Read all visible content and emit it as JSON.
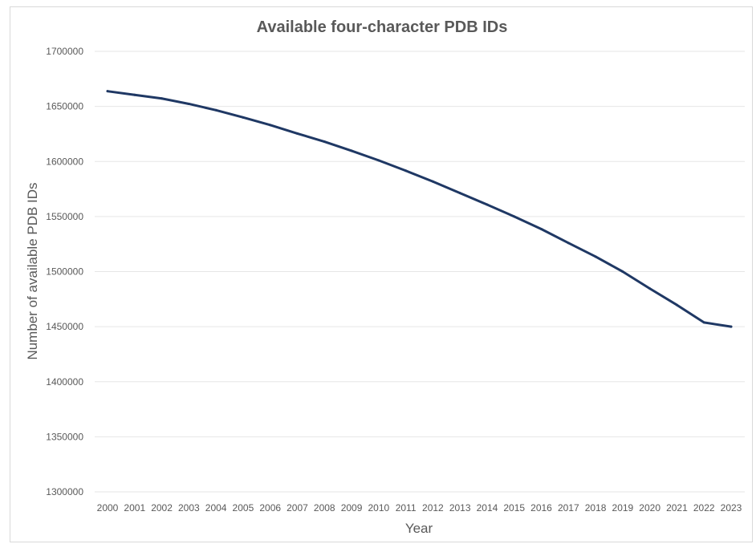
{
  "chart_data": {
    "type": "line",
    "title": "Available four-character PDB IDs",
    "xlabel": "Year",
    "ylabel": "Number of available PDB IDs",
    "x": [
      "2000",
      "2001",
      "2002",
      "2003",
      "2004",
      "2005",
      "2006",
      "2007",
      "2008",
      "2009",
      "2010",
      "2011",
      "2012",
      "2013",
      "2014",
      "2015",
      "2016",
      "2017",
      "2018",
      "2019",
      "2020",
      "2021",
      "2022",
      "2023"
    ],
    "series": [
      {
        "values": [
          1663800,
          1660500,
          1657200,
          1652300,
          1646600,
          1640000,
          1633100,
          1625400,
          1618000,
          1609700,
          1601000,
          1591600,
          1581800,
          1571300,
          1560800,
          1550000,
          1538600,
          1526000,
          1513600,
          1500000,
          1484600,
          1469700,
          1453800,
          1450000
        ],
        "color": "#1f3864"
      }
    ],
    "ylim": [
      1300000,
      1700000
    ],
    "yticks": [
      1300000,
      1350000,
      1400000,
      1450000,
      1500000,
      1550000,
      1600000,
      1650000,
      1700000
    ],
    "grid": true,
    "legend": "none"
  }
}
